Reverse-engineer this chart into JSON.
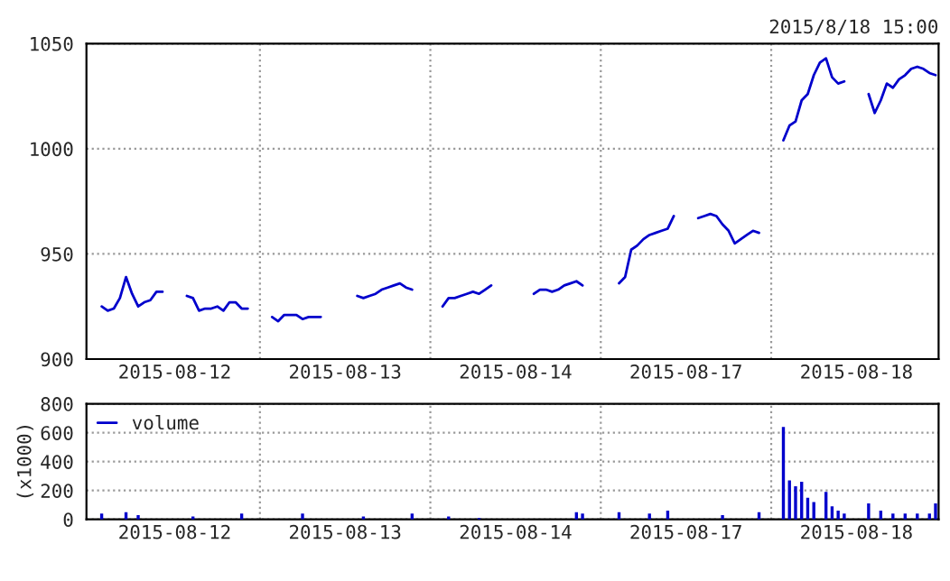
{
  "chart_data": [
    {
      "type": "line",
      "annotations": [
        "2015/8/18 15:00"
      ],
      "categories": [
        null,
        null,
        null,
        null,
        null,
        null,
        null,
        null,
        null,
        null,
        null,
        null,
        null,
        null,
        "2015-08-12",
        null,
        null,
        null,
        null,
        null,
        null,
        null,
        null,
        null,
        null,
        null,
        null,
        null,
        null,
        null,
        null,
        null,
        null,
        null,
        null,
        null,
        null,
        null,
        null,
        null,
        null,
        null,
        "2015-08-13",
        null,
        null,
        null,
        null,
        null,
        null,
        null,
        null,
        null,
        null,
        null,
        null,
        null,
        null,
        null,
        null,
        null,
        null,
        null,
        null,
        null,
        null,
        null,
        null,
        null,
        null,
        null,
        "2015-08-14",
        null,
        null,
        null,
        null,
        null,
        null,
        null,
        null,
        null,
        null,
        null,
        null,
        null,
        null,
        null,
        null,
        null,
        null,
        null,
        null,
        null,
        null,
        null,
        null,
        null,
        null,
        null,
        "2015-08-17",
        null,
        null,
        null,
        null,
        null,
        null,
        null,
        null,
        null,
        null,
        null,
        null,
        null,
        null,
        null,
        null,
        null,
        null,
        null,
        null,
        null,
        null,
        null,
        null,
        null,
        null,
        null,
        "2015-08-18",
        null,
        null,
        null,
        null,
        null,
        null,
        null,
        null,
        null,
        null,
        null,
        null,
        null
      ],
      "ylim": [
        900,
        1050
      ],
      "yticks": [
        900,
        950,
        1000,
        1050
      ],
      "grid": "y",
      "legend": false,
      "marker": "none",
      "line_style": "solid",
      "series": [
        {
          "color": "#0000cc",
          "values": [
            null,
            null,
            925,
            923,
            924,
            929,
            939,
            931,
            925,
            927,
            928,
            932,
            932,
            null,
            null,
            null,
            930,
            929,
            923,
            924,
            924,
            925,
            923,
            927,
            927,
            924,
            924,
            null,
            null,
            null,
            920,
            918,
            921,
            921,
            921,
            919,
            920,
            920,
            920,
            null,
            null,
            null,
            null,
            null,
            930,
            929,
            930,
            931,
            933,
            934,
            935,
            936,
            934,
            933,
            null,
            null,
            null,
            null,
            925,
            929,
            929,
            930,
            931,
            932,
            931,
            933,
            935,
            null,
            null,
            null,
            null,
            null,
            null,
            931,
            933,
            933,
            932,
            933,
            935,
            936,
            937,
            935,
            null,
            null,
            null,
            null,
            null,
            936,
            939,
            952,
            954,
            957,
            959,
            960,
            961,
            962,
            968,
            null,
            null,
            null,
            967,
            968,
            969,
            968,
            964,
            961,
            955,
            957,
            959,
            961,
            960,
            null,
            null,
            null,
            1004,
            1011,
            1013,
            1023,
            1026,
            1035,
            1041,
            1043,
            1034,
            1031,
            1032,
            null,
            null,
            null,
            1026,
            1017,
            1023,
            1031,
            1029,
            1033,
            1035,
            1038,
            1039,
            1038,
            1036,
            1035
          ]
        }
      ]
    },
    {
      "type": "bar",
      "ylabel": "(x1000)",
      "categories": [
        null,
        null,
        null,
        null,
        null,
        null,
        null,
        null,
        null,
        null,
        null,
        null,
        null,
        null,
        "2015-08-12",
        null,
        null,
        null,
        null,
        null,
        null,
        null,
        null,
        null,
        null,
        null,
        null,
        null,
        null,
        null,
        null,
        null,
        null,
        null,
        null,
        null,
        null,
        null,
        null,
        null,
        null,
        null,
        "2015-08-13",
        null,
        null,
        null,
        null,
        null,
        null,
        null,
        null,
        null,
        null,
        null,
        null,
        null,
        null,
        null,
        null,
        null,
        null,
        null,
        null,
        null,
        null,
        null,
        null,
        null,
        null,
        null,
        "2015-08-14",
        null,
        null,
        null,
        null,
        null,
        null,
        null,
        null,
        null,
        null,
        null,
        null,
        null,
        null,
        null,
        null,
        null,
        null,
        null,
        null,
        null,
        null,
        null,
        null,
        null,
        null,
        null,
        "2015-08-17",
        null,
        null,
        null,
        null,
        null,
        null,
        null,
        null,
        null,
        null,
        null,
        null,
        null,
        null,
        null,
        null,
        null,
        null,
        null,
        null,
        null,
        null,
        null,
        null,
        null,
        null,
        null,
        "2015-08-18",
        null,
        null,
        null,
        null,
        null,
        null,
        null,
        null,
        null,
        null,
        null,
        null,
        null
      ],
      "ylim": [
        0,
        800
      ],
      "yticks": [
        0,
        200,
        400,
        600,
        800
      ],
      "grid": "y",
      "legend": "top left",
      "series": [
        {
          "name": "volume",
          "color": "#0000cc",
          "values": [
            null,
            null,
            40,
            null,
            null,
            null,
            50,
            null,
            30,
            null,
            null,
            null,
            null,
            null,
            null,
            null,
            null,
            20,
            null,
            null,
            null,
            null,
            null,
            null,
            null,
            40,
            null,
            null,
            null,
            null,
            null,
            null,
            null,
            null,
            null,
            40,
            null,
            null,
            null,
            null,
            null,
            null,
            null,
            null,
            null,
            20,
            null,
            null,
            null,
            null,
            null,
            null,
            null,
            40,
            null,
            null,
            null,
            null,
            null,
            20,
            null,
            null,
            null,
            null,
            10,
            null,
            null,
            null,
            null,
            null,
            null,
            null,
            null,
            null,
            null,
            null,
            null,
            null,
            null,
            null,
            50,
            40,
            null,
            null,
            null,
            null,
            null,
            50,
            null,
            null,
            null,
            null,
            40,
            null,
            null,
            60,
            null,
            null,
            null,
            null,
            null,
            null,
            null,
            null,
            30,
            null,
            null,
            null,
            null,
            null,
            50,
            null,
            null,
            null,
            640,
            270,
            230,
            260,
            150,
            120,
            null,
            190,
            90,
            60,
            40,
            null,
            null,
            null,
            110,
            null,
            60,
            null,
            40,
            null,
            40,
            null,
            40,
            null,
            40,
            110
          ]
        }
      ]
    }
  ]
}
